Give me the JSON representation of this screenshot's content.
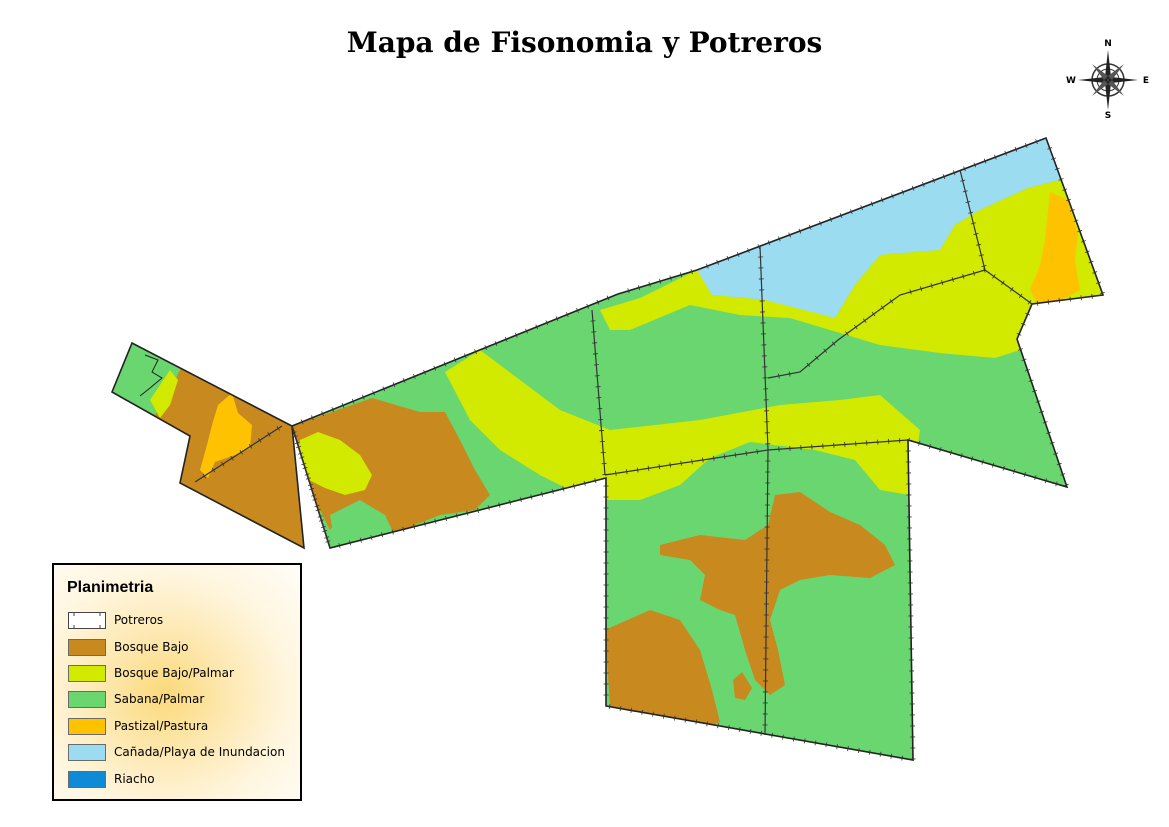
{
  "map": {
    "title": "Mapa de Fisonomia y Potreros"
  },
  "compass": {
    "n": "N",
    "s": "S",
    "e": "E",
    "w": "W"
  },
  "legend": {
    "title": "Planimetria",
    "items": [
      {
        "label": "Potreros",
        "color": "#ffffff",
        "kind": "potreros"
      },
      {
        "label": "Bosque Bajo",
        "color": "#c8891e",
        "kind": "fill"
      },
      {
        "label": "Bosque Bajo/Palmar",
        "color": "#d2ea00",
        "kind": "fill"
      },
      {
        "label": "Sabana/Palmar",
        "color": "#6ad670",
        "kind": "fill"
      },
      {
        "label": "Pastizal/Pastura",
        "color": "#ffc200",
        "kind": "fill"
      },
      {
        "label": "Cañada/Playa de Inundacion",
        "color": "#9bdcf0",
        "kind": "fill"
      },
      {
        "label": "Riacho",
        "color": "#0e8ad6",
        "kind": "fill"
      }
    ]
  },
  "colors": {
    "bosque_bajo": "#c8891e",
    "bosque_palmar": "#d2ea00",
    "sabana_palmar": "#6ad670",
    "pastizal": "#ffc200",
    "canada": "#9bdcf0",
    "riacho": "#0e8ad6",
    "boundary": "#222222"
  }
}
